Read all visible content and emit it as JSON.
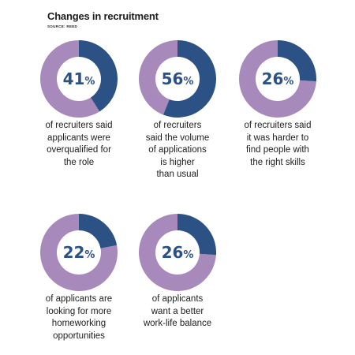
{
  "header": {
    "title": "Changes in recruitment",
    "source": "SOURCE: REED"
  },
  "colors": {
    "highlight": "#2c5285",
    "remainder": "#a889bc",
    "value_text": "#2c5285"
  },
  "chart_data": [
    {
      "type": "pie",
      "value": 41,
      "label": "41%",
      "caption": "of recruiters said\napplicants were\noverqualified for\nthe role"
    },
    {
      "type": "pie",
      "value": 56,
      "label": "56%",
      "caption": "of recruiters\nsaid the volume\nof applications\nis higher\nthan usual"
    },
    {
      "type": "pie",
      "value": 26,
      "label": "26%",
      "caption": "of recruiters said\nit was harder to\nfind people with\nthe right skills"
    },
    {
      "type": "pie",
      "value": 22,
      "label": "22%",
      "caption": "of applicants are\nlooking for more\nhomeworking\nopportunities"
    },
    {
      "type": "pie",
      "value": 26,
      "label": "26%",
      "caption": "of applicants\nwant a better\nwork-life balance"
    }
  ]
}
